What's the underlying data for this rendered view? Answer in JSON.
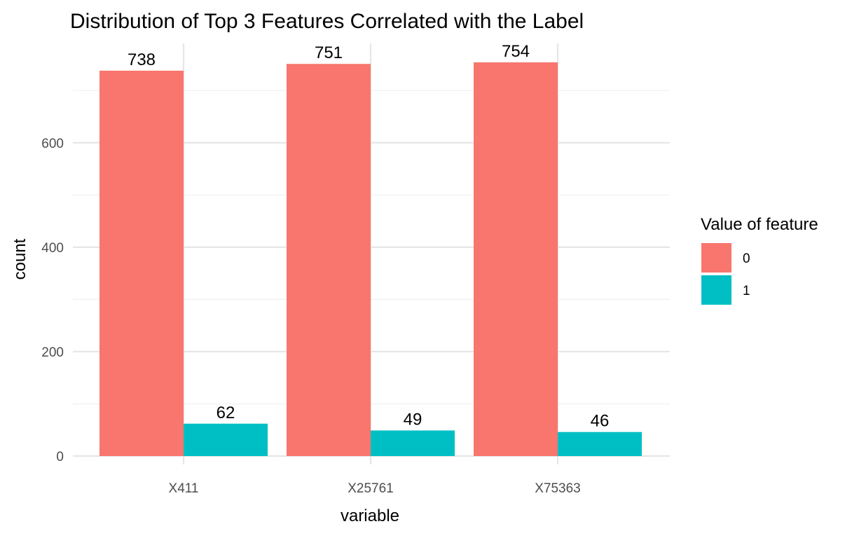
{
  "chart_data": {
    "type": "bar",
    "title": "Distribution of Top 3 Features Correlated with the Label",
    "xlabel": "variable",
    "ylabel": "count",
    "categories": [
      "X411",
      "X25761",
      "X75363"
    ],
    "series": [
      {
        "name": "0",
        "values": [
          738,
          751,
          754
        ],
        "color": "#F8766D"
      },
      {
        "name": "1",
        "values": [
          62,
          49,
          46
        ],
        "color": "#00BFC4"
      }
    ],
    "data_labels": [
      [
        "738",
        "751",
        "754"
      ],
      [
        "62",
        "49",
        "46"
      ]
    ],
    "ylim": [
      0,
      754
    ],
    "yticks": [
      0,
      200,
      400,
      600
    ],
    "ytick_labels": [
      "0",
      "200",
      "400",
      "600"
    ],
    "legend": {
      "title": "Value of feature",
      "position": "right",
      "items": [
        "0",
        "1"
      ]
    },
    "grid": true,
    "colors": {
      "series_0": "#F8766D",
      "series_1": "#00BFC4",
      "grid_major": "#e6e6e6",
      "grid_minor": "#f0f0f0",
      "tick_text": "#4d4d4d"
    }
  }
}
